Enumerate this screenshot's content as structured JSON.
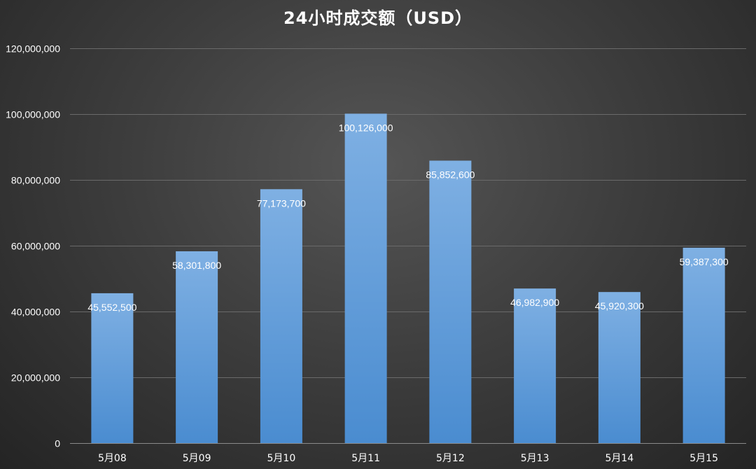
{
  "chart_data": {
    "type": "bar",
    "title": "24小时成交额（USD）",
    "xlabel": "",
    "ylabel": "",
    "categories": [
      "5月08",
      "5月09",
      "5月10",
      "5月11",
      "5月12",
      "5月13",
      "5月14",
      "5月15"
    ],
    "values": [
      45552500,
      58301800,
      77173700,
      100126000,
      85852600,
      46982900,
      45920300,
      59387300
    ],
    "data_labels": [
      "45,552,500",
      "58,301,800",
      "77,173,700",
      "100,126,000",
      "85,852,600",
      "46,982,900",
      "45,920,300",
      "59,387,300"
    ],
    "ylim": [
      0,
      120000000
    ],
    "yticks": [
      0,
      20000000,
      40000000,
      60000000,
      80000000,
      100000000,
      120000000
    ],
    "ytick_labels": [
      "0",
      "20,000,000",
      "40,000,000",
      "60,000,000",
      "80,000,000",
      "100,000,000",
      "120,000,000"
    ],
    "grid": true,
    "legend": "none",
    "colors": {
      "bar_top": "#7fb0e3",
      "bar_bottom": "#4a8cd0",
      "background": "#3e3e3e",
      "text": "#ffffff"
    }
  }
}
